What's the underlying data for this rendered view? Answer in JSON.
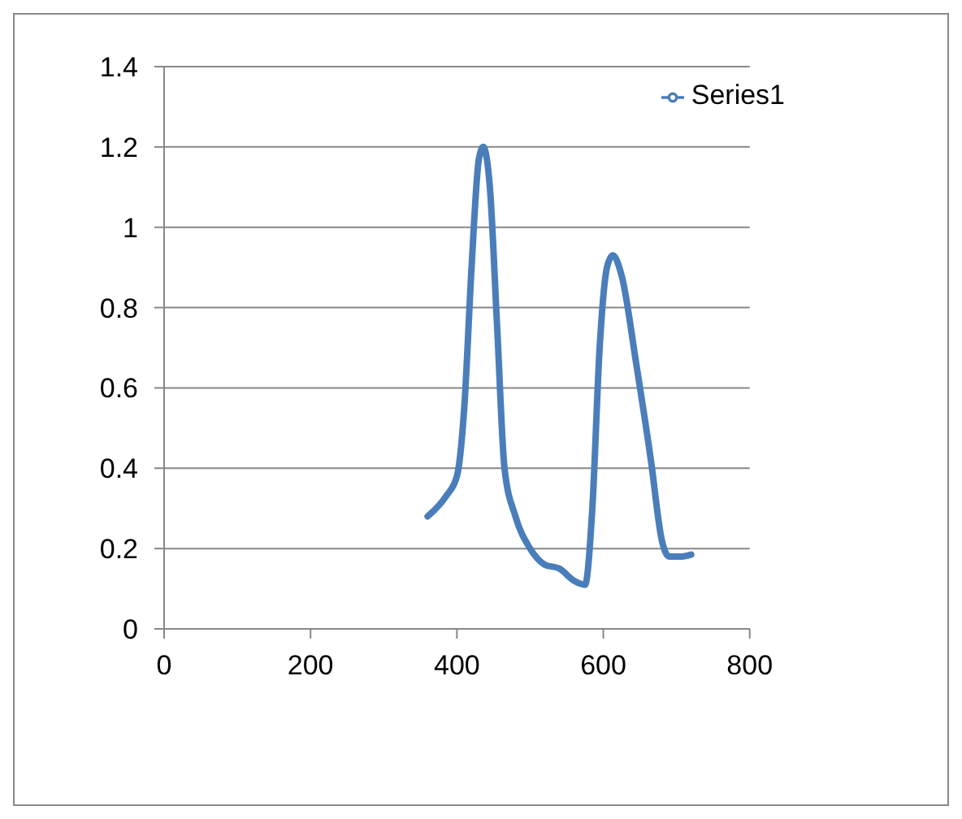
{
  "chart_data": {
    "type": "line",
    "x": [
      360,
      385,
      400,
      410,
      420,
      430,
      436,
      445,
      455,
      465,
      480,
      500,
      520,
      540,
      560,
      575,
      585,
      595,
      605,
      613,
      625,
      645,
      665,
      680,
      690,
      705,
      720
    ],
    "series": [
      {
        "name": "Series1",
        "color": "#4a7ebb",
        "values": [
          0.28,
          0.33,
          0.38,
          0.55,
          0.9,
          1.17,
          1.2,
          1.1,
          0.75,
          0.4,
          0.28,
          0.2,
          0.16,
          0.15,
          0.12,
          0.11,
          0.3,
          0.7,
          0.9,
          0.93,
          0.88,
          0.66,
          0.42,
          0.22,
          0.18,
          0.18,
          0.185
        ]
      }
    ],
    "xlim": [
      0,
      800
    ],
    "xticks": [
      0,
      200,
      400,
      600,
      800
    ],
    "ylim": [
      0,
      1.4
    ],
    "yticks": [
      0,
      0.2,
      0.4,
      0.6,
      0.8,
      1,
      1.2,
      1.4
    ],
    "grid": "y",
    "legend": "top right",
    "marker": "none",
    "line_style": "solid"
  }
}
